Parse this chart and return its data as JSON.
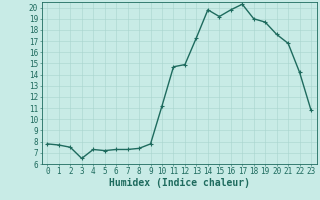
{
  "x": [
    0,
    1,
    2,
    3,
    4,
    5,
    6,
    7,
    8,
    9,
    10,
    11,
    12,
    13,
    14,
    15,
    16,
    17,
    18,
    19,
    20,
    21,
    22,
    23
  ],
  "y": [
    7.8,
    7.7,
    7.5,
    6.5,
    7.3,
    7.2,
    7.3,
    7.3,
    7.4,
    7.8,
    11.2,
    14.7,
    14.9,
    17.3,
    19.8,
    19.2,
    19.8,
    20.3,
    19.0,
    18.7,
    17.6,
    16.8,
    14.2,
    10.8
  ],
  "xlabel": "Humidex (Indice chaleur)",
  "xlim": [
    -0.5,
    23.5
  ],
  "ylim": [
    6,
    20.5
  ],
  "yticks": [
    6,
    7,
    8,
    9,
    10,
    11,
    12,
    13,
    14,
    15,
    16,
    17,
    18,
    19,
    20
  ],
  "xticks": [
    0,
    1,
    2,
    3,
    4,
    5,
    6,
    7,
    8,
    9,
    10,
    11,
    12,
    13,
    14,
    15,
    16,
    17,
    18,
    19,
    20,
    21,
    22,
    23
  ],
  "line_color": "#1e6b5e",
  "marker_color": "#1e6b5e",
  "bg_color": "#c8ebe6",
  "grid_color": "#a8d4ce",
  "axis_color": "#1e6b5e",
  "tick_color": "#1e6b5e",
  "xlabel_fontsize": 7,
  "tick_fontsize": 5.5,
  "line_width": 1.0,
  "marker_size": 2.5
}
